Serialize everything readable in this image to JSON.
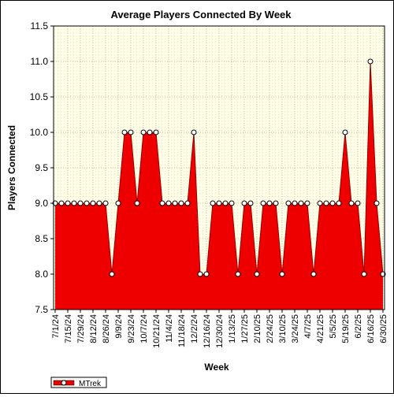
{
  "chart_data": {
    "type": "area",
    "title": "Average Players Connected By Week",
    "xlabel": "Week",
    "ylabel": "Players Connected",
    "ylim": [
      7.5,
      11.5
    ],
    "yticks": [
      "7.5",
      "8.0",
      "8.5",
      "9.0",
      "9.5",
      "10.0",
      "10.5",
      "11.0",
      "11.5"
    ],
    "x_tick_labels": [
      "7/1/24",
      "7/15/24",
      "7/29/24",
      "8/12/24",
      "8/26/24",
      "9/9/24",
      "9/23/24",
      "10/7/24",
      "10/21/24",
      "11/4/24",
      "11/18/24",
      "12/2/24",
      "12/16/24",
      "12/30/24",
      "1/13/25",
      "1/27/25",
      "2/10/25",
      "2/24/25",
      "3/10/25",
      "3/24/25",
      "4/7/25",
      "4/21/25",
      "5/5/25",
      "5/19/25",
      "6/2/25",
      "6/16/25",
      "6/30/25"
    ],
    "grid": true,
    "legend_position": "bottom-left",
    "series": [
      {
        "name": "MTrek",
        "color": "#ee0000",
        "values": [
          9,
          9,
          9,
          9,
          9,
          9,
          9,
          9,
          9,
          8,
          9,
          10,
          10,
          9,
          10,
          10,
          10,
          9,
          9,
          9,
          9,
          9,
          10,
          8,
          8,
          9,
          9,
          9,
          9,
          8,
          9,
          9,
          8,
          9,
          9,
          9,
          8,
          9,
          9,
          9,
          9,
          8,
          9,
          9,
          9,
          9,
          10,
          9,
          9,
          8,
          11,
          9,
          8
        ]
      }
    ]
  }
}
